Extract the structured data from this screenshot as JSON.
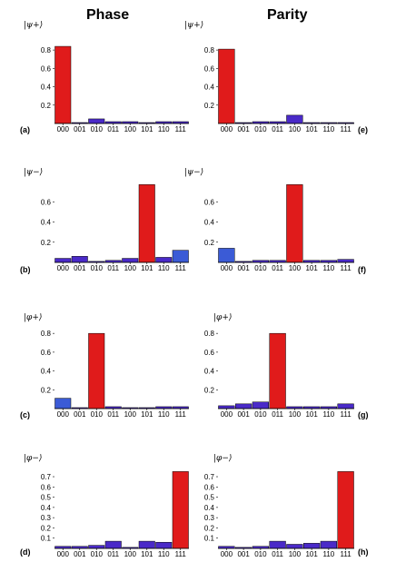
{
  "column_titles": {
    "left": "Phase",
    "right": "Parity"
  },
  "colors": {
    "high": "#e01b1b",
    "low": "#4a2ac8",
    "low_alt": "#3b5bd6",
    "axis": "#000000"
  },
  "chart_data": [
    {
      "type": "bar",
      "panel": "(a)",
      "state_label": "ψ+",
      "categories": [
        "000",
        "001",
        "010",
        "011",
        "100",
        "101",
        "110",
        "111"
      ],
      "values": [
        0.84,
        0.01,
        0.05,
        0.02,
        0.02,
        0.01,
        0.02,
        0.02
      ],
      "yticks": [
        0.2,
        0.4,
        0.6,
        0.8
      ],
      "ylim": [
        0,
        0.9
      ],
      "colors": [
        "high",
        "low",
        "low",
        "low",
        "low",
        "low",
        "low",
        "low"
      ]
    },
    {
      "type": "bar",
      "panel": "(e)",
      "state_label": "ψ+",
      "categories": [
        "000",
        "001",
        "010",
        "011",
        "100",
        "101",
        "110",
        "111"
      ],
      "values": [
        0.81,
        0.01,
        0.02,
        0.02,
        0.09,
        0.01,
        0.01,
        0.01
      ],
      "yticks": [
        0.2,
        0.4,
        0.6,
        0.8
      ],
      "ylim": [
        0,
        0.9
      ],
      "colors": [
        "high",
        "low",
        "low",
        "low",
        "low",
        "low",
        "low",
        "low"
      ]
    },
    {
      "type": "bar",
      "panel": "(b)",
      "state_label": "ψ−",
      "categories": [
        "000",
        "001",
        "010",
        "011",
        "100",
        "101",
        "110",
        "111"
      ],
      "values": [
        0.04,
        0.06,
        0.01,
        0.02,
        0.04,
        0.77,
        0.05,
        0.12
      ],
      "yticks": [
        0.2,
        0.4,
        0.6
      ],
      "ylim": [
        0,
        0.8
      ],
      "colors": [
        "low",
        "low",
        "low",
        "low",
        "low",
        "high",
        "low",
        "low_alt"
      ]
    },
    {
      "type": "bar",
      "panel": "(f)",
      "state_label": "ψ−",
      "categories": [
        "000",
        "001",
        "010",
        "011",
        "100",
        "101",
        "110",
        "111"
      ],
      "values": [
        0.14,
        0.01,
        0.02,
        0.02,
        0.77,
        0.02,
        0.02,
        0.03
      ],
      "yticks": [
        0.2,
        0.4,
        0.6
      ],
      "ylim": [
        0,
        0.8
      ],
      "colors": [
        "low_alt",
        "low",
        "low",
        "low",
        "high",
        "low",
        "low",
        "low"
      ]
    },
    {
      "type": "bar",
      "panel": "(c)",
      "state_label": "φ+",
      "categories": [
        "000",
        "001",
        "010",
        "011",
        "100",
        "101",
        "110",
        "111"
      ],
      "values": [
        0.11,
        0.01,
        0.8,
        0.02,
        0.01,
        0.01,
        0.02,
        0.02
      ],
      "yticks": [
        0.2,
        0.4,
        0.6,
        0.8
      ],
      "ylim": [
        0,
        0.85
      ],
      "colors": [
        "low_alt",
        "low",
        "high",
        "low",
        "low",
        "low",
        "low",
        "low"
      ]
    },
    {
      "type": "bar",
      "panel": "(g)",
      "state_label": "φ+",
      "categories": [
        "000",
        "001",
        "010",
        "011",
        "100",
        "101",
        "110",
        "111"
      ],
      "values": [
        0.03,
        0.05,
        0.07,
        0.8,
        0.02,
        0.02,
        0.02,
        0.05
      ],
      "yticks": [
        0.2,
        0.4,
        0.6,
        0.8
      ],
      "ylim": [
        0,
        0.85
      ],
      "colors": [
        "low",
        "low",
        "low",
        "high",
        "low",
        "low",
        "low",
        "low"
      ]
    },
    {
      "type": "bar",
      "panel": "(d)",
      "state_label": "φ−",
      "categories": [
        "000",
        "001",
        "010",
        "011",
        "100",
        "101",
        "110",
        "111"
      ],
      "values": [
        0.02,
        0.02,
        0.03,
        0.07,
        0.01,
        0.07,
        0.06,
        0.75
      ],
      "yticks": [
        0.1,
        0.2,
        0.3,
        0.4,
        0.5,
        0.6,
        0.7
      ],
      "ylim": [
        0,
        0.78
      ],
      "colors": [
        "low",
        "low",
        "low",
        "low",
        "low",
        "low",
        "low",
        "high"
      ]
    },
    {
      "type": "bar",
      "panel": "(h)",
      "state_label": "φ−",
      "categories": [
        "000",
        "001",
        "010",
        "011",
        "100",
        "101",
        "110",
        "111"
      ],
      "values": [
        0.02,
        0.01,
        0.02,
        0.07,
        0.04,
        0.05,
        0.07,
        0.75
      ],
      "yticks": [
        0.1,
        0.2,
        0.3,
        0.4,
        0.5,
        0.6,
        0.7
      ],
      "ylim": [
        0,
        0.78
      ],
      "colors": [
        "low",
        "low",
        "low",
        "low",
        "low",
        "low",
        "low",
        "high"
      ]
    }
  ]
}
